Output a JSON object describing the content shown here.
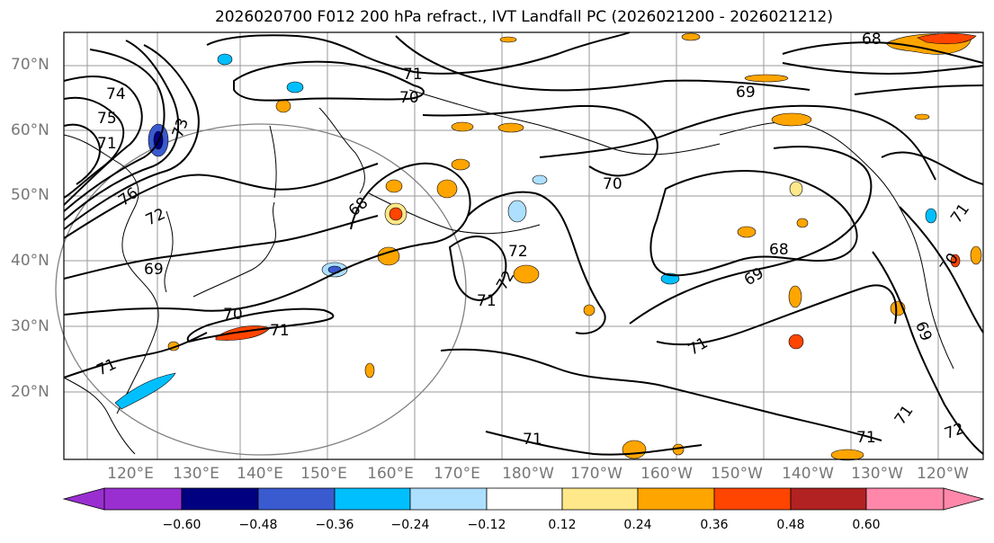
{
  "title": "2026020700 F012 200 hPa refract., IVT Landfall PC (2026021200 - 2026021212)",
  "lat_labels": [
    "70°N",
    "60°N",
    "50°N",
    "40°N",
    "30°N",
    "20°N"
  ],
  "lon_labels": [
    "120°E",
    "130°E",
    "140°E",
    "150°E",
    "160°E",
    "170°E",
    "180°W",
    "170°W",
    "160°W",
    "150°W",
    "140°W",
    "130°W",
    "120°W"
  ],
  "contour_labels": [
    "74",
    "75",
    "73",
    "71",
    "76",
    "72",
    "69",
    "70",
    "71",
    "68",
    "70",
    "72",
    "71",
    "72",
    "71",
    "69",
    "70",
    "71",
    "68",
    "69",
    "71",
    "71",
    "68",
    "71",
    "69",
    "71",
    "72",
    "71",
    "70",
    "68"
  ],
  "colorbar": {
    "ticks": [
      "−0.60",
      "−0.48",
      "−0.36",
      "−0.24",
      "−0.12",
      "0.12",
      "0.24",
      "0.36",
      "0.48",
      "0.60"
    ],
    "colors": [
      "#9a2fd1",
      "#000080",
      "#3a5ad0",
      "#00bfff",
      "#addfff",
      "#ffffff",
      "#ffe88a",
      "#ffa500",
      "#ff4500",
      "#b22222",
      "#ff88aa"
    ]
  }
}
